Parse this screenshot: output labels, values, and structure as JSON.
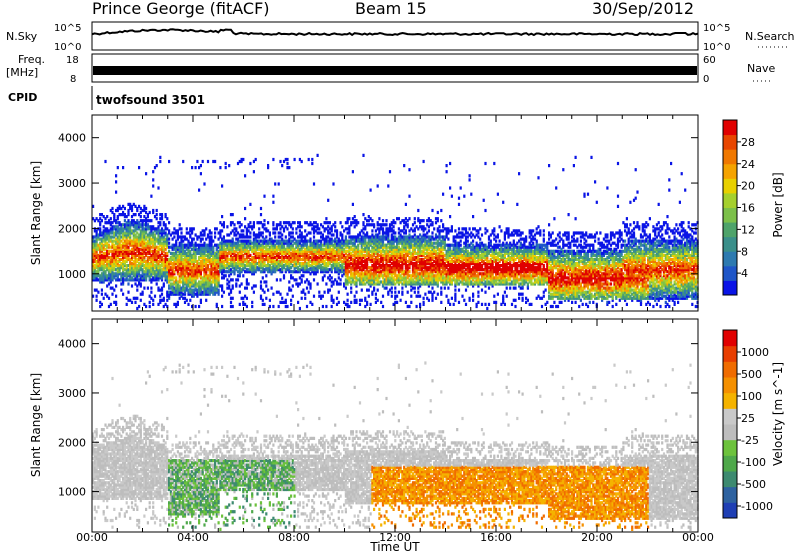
{
  "header": {
    "station": "Prince George (fitACF)",
    "beam": "Beam 15",
    "date": "30/Sep/2012"
  },
  "noise_panel": {
    "left_label": "N.Sky",
    "right_label": "N.Search",
    "y_ticks": [
      "10^5",
      "10^0"
    ],
    "right_ticks": [
      "10^5",
      "10^0"
    ]
  },
  "freq_panel": {
    "left_label_line1": "Freq.",
    "left_label_line2": "[MHz]",
    "y_ticks": [
      "18",
      "8"
    ],
    "right_label": "Nave",
    "right_ticks": [
      "60",
      "0"
    ]
  },
  "cpid_panel": {
    "label": "CPID",
    "program": "twofsound 3501"
  },
  "chart_data": [
    {
      "type": "heatmap",
      "name": "power",
      "ylabel": "Slant Range [km]",
      "xlabel": "",
      "ylim": [
        180,
        4500
      ],
      "yticks": [
        1000,
        2000,
        3000,
        4000
      ],
      "xlim": [
        0,
        24
      ],
      "colorbar": {
        "label": "Power [dB]",
        "range": [
          0,
          32
        ],
        "ticks": [
          "4",
          "8",
          "12",
          "16",
          "20",
          "24",
          "28"
        ],
        "colors": [
          "#0a14e6",
          "#1f56c8",
          "#2d7ab0",
          "#3a8f8a",
          "#4ea36a",
          "#7cc04a",
          "#a5d02e",
          "#e8d000",
          "#f5a300",
          "#f07800",
          "#e84600",
          "#e00000"
        ]
      }
    },
    {
      "type": "heatmap",
      "name": "velocity",
      "ylabel": "Slant Range [km]",
      "xlabel": "Time UT",
      "ylim": [
        180,
        4500
      ],
      "yticks": [
        1000,
        2000,
        3000,
        4000
      ],
      "xlim": [
        0,
        24
      ],
      "xticks": [
        "00:00",
        "04:00",
        "08:00",
        "12:00",
        "16:00",
        "20:00",
        "00:00"
      ],
      "colorbar": {
        "label": "Velocity [m s^-1]",
        "ticks": [
          "1000",
          "500",
          "100",
          "25",
          "-25",
          "-100",
          "-500",
          "-1000"
        ],
        "colors": [
          "#1f3fb4",
          "#2e62a0",
          "#3d8a70",
          "#4ea84a",
          "#6cc23c",
          "#bdbdbd",
          "#c9c9c9",
          "#f5b300",
          "#f59000",
          "#f06c00",
          "#e83e00",
          "#e00000"
        ]
      }
    }
  ]
}
